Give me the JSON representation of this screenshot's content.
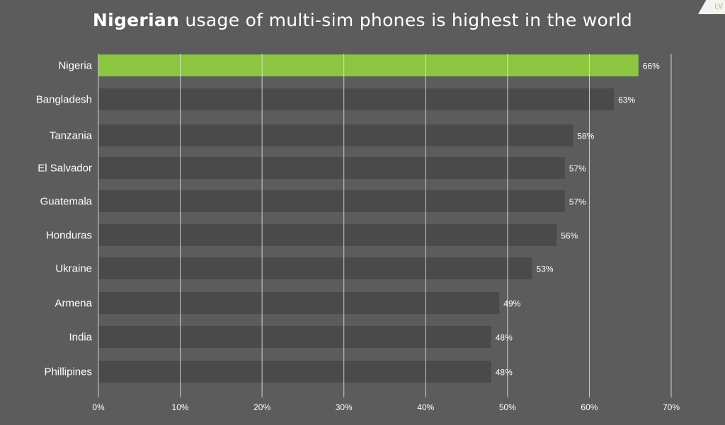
{
  "title": {
    "bold": "Nigerian",
    "rest": " usage of multi-sim phones is highest in the world"
  },
  "corner_badge": "LV",
  "colors": {
    "background": "#5c5c5c",
    "highlight_bar": "#8cc540",
    "bar": "#4a4a4a",
    "gridline": "#e6e6e6",
    "text": "#ffffff"
  },
  "chart_data": {
    "type": "bar",
    "orientation": "horizontal",
    "categories": [
      "Nigeria",
      "Bangladesh",
      "Tanzania",
      "El Salvador",
      "Guatemala",
      "Honduras",
      "Ukraine",
      "Armena",
      "India",
      "Phillipines"
    ],
    "values": [
      66,
      63,
      58,
      57,
      57,
      56,
      53,
      49,
      48,
      48
    ],
    "value_labels": [
      "66%",
      "63%",
      "58%",
      "57%",
      "57%",
      "56%",
      "53%",
      "49%",
      "48%",
      "48%"
    ],
    "highlight_index": 0,
    "xlim": [
      0,
      70
    ],
    "xticks": [
      0,
      10,
      20,
      30,
      40,
      50,
      60,
      70
    ],
    "xtick_labels": [
      "0%",
      "10%",
      "20%",
      "30%",
      "40%",
      "50%",
      "60%",
      "70%"
    ],
    "grid": "vertical"
  }
}
